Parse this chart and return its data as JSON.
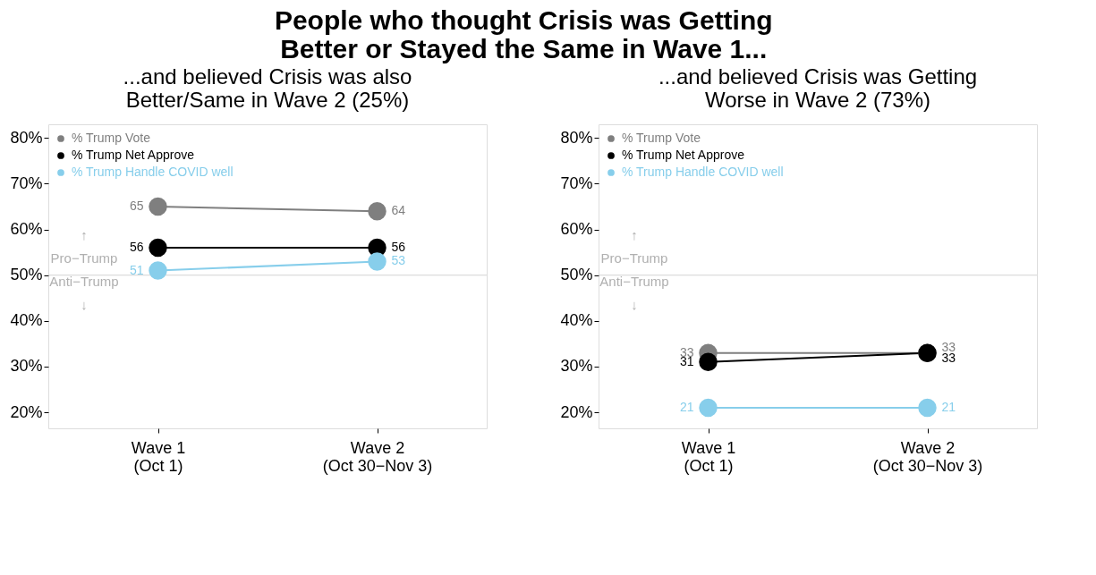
{
  "chart_data": [
    {
      "type": "line",
      "title": "People who thought Crisis was Getting\nBetter or Stayed the Same in Wave 1...",
      "subtitle": "...and believed Crisis was also\nBetter/Same in Wave 2 (25%)",
      "categories": [
        "Wave 1\n(Oct 1)",
        "Wave 2\n(Oct 30−Nov 3)"
      ],
      "series": [
        {
          "name": "% Trump Vote",
          "color": "#7f7f7f",
          "values": [
            65,
            64
          ]
        },
        {
          "name": "% Trump Net Approve",
          "color": "#000000",
          "values": [
            56,
            56
          ]
        },
        {
          "name": "% Trump Handle COVID well",
          "color": "#87ceeb",
          "values": [
            51,
            53
          ]
        }
      ],
      "ylim": [
        16.5,
        83
      ],
      "yticks": [
        {
          "value": 20,
          "label": "20%"
        },
        {
          "value": 30,
          "label": "30%"
        },
        {
          "value": 40,
          "label": "40%"
        },
        {
          "value": 50,
          "label": "50%"
        },
        {
          "value": 60,
          "label": "60%"
        },
        {
          "value": 70,
          "label": "70%"
        },
        {
          "value": 80,
          "label": "80%"
        }
      ],
      "ref_lines": [
        {
          "axis": "y",
          "value": 50,
          "color": "#d3d3d3"
        }
      ],
      "annotations": [
        "↑",
        "Pro−Trump",
        "Anti−Trump",
        "↓"
      ],
      "data_labels": true,
      "marker": "circle",
      "legend": "top left",
      "grid": false
    },
    {
      "type": "line",
      "subtitle": "...and believed Crisis was Getting\nWorse in Wave 2 (73%)",
      "categories": [
        "Wave 1\n(Oct 1)",
        "Wave 2\n(Oct 30−Nov 3)"
      ],
      "series": [
        {
          "name": "% Trump Vote",
          "color": "#7f7f7f",
          "values": [
            33,
            33
          ]
        },
        {
          "name": "% Trump Net Approve",
          "color": "#000000",
          "values": [
            31,
            33
          ]
        },
        {
          "name": "% Trump Handle COVID well",
          "color": "#87ceeb",
          "values": [
            21,
            21
          ]
        }
      ],
      "ylim": [
        16.5,
        83
      ],
      "yticks": [
        {
          "value": 20,
          "label": "20%"
        },
        {
          "value": 30,
          "label": "30%"
        },
        {
          "value": 40,
          "label": "40%"
        },
        {
          "value": 50,
          "label": "50%"
        },
        {
          "value": 60,
          "label": "60%"
        },
        {
          "value": 70,
          "label": "70%"
        },
        {
          "value": 80,
          "label": "80%"
        }
      ],
      "ref_lines": [
        {
          "axis": "y",
          "value": 50,
          "color": "#d3d3d3"
        }
      ],
      "annotations": [
        "↑",
        "Pro−Trump",
        "Anti−Trump",
        "↓"
      ],
      "data_labels": true,
      "marker": "circle",
      "legend": "top left",
      "grid": false
    }
  ]
}
